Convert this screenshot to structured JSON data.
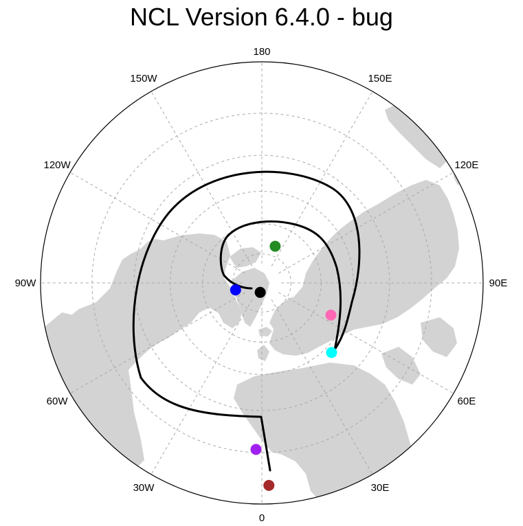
{
  "title": "NCL Version 6.4.0 - bug",
  "colors": {
    "land": "#d3d3d3",
    "ocean": "#ffffff",
    "grid": "#a9a9a9",
    "track": "#000000",
    "border": "#000000"
  },
  "longitude_labels": [
    {
      "id": "lon-0",
      "text": "0",
      "lon": 0
    },
    {
      "id": "lon-30e",
      "text": "30E",
      "lon": 30
    },
    {
      "id": "lon-60e",
      "text": "60E",
      "lon": 60
    },
    {
      "id": "lon-90e",
      "text": "90E",
      "lon": 90
    },
    {
      "id": "lon-120e",
      "text": "120E",
      "lon": 120
    },
    {
      "id": "lon-150e",
      "text": "150E",
      "lon": 150
    },
    {
      "id": "lon-180",
      "text": "180",
      "lon": 180
    },
    {
      "id": "lon-150w",
      "text": "150W",
      "lon": -150
    },
    {
      "id": "lon-120w",
      "text": "120W",
      "lon": -120
    },
    {
      "id": "lon-90w",
      "text": "90W",
      "lon": -90
    },
    {
      "id": "lon-60w",
      "text": "60W",
      "lon": -60
    },
    {
      "id": "lon-30w",
      "text": "30W",
      "lon": -30
    }
  ],
  "latitude_circles": [
    75,
    60,
    45,
    30,
    15
  ],
  "projection": {
    "type": "north-polar-stereographic",
    "min_lat": 0,
    "center_lon": 0
  },
  "markers": [
    {
      "name": "black",
      "color": "#000000",
      "lat": 85,
      "lon": -10
    },
    {
      "name": "blue",
      "color": "#0000ff",
      "lat": 76,
      "lon": -75
    },
    {
      "name": "green",
      "color": "#228b22",
      "lat": 70,
      "lon": 160
    },
    {
      "name": "pink",
      "color": "#ff69b4",
      "lat": 52,
      "lon": 65
    },
    {
      "name": "cyan",
      "color": "#00ffff",
      "lat": 42,
      "lon": 45
    },
    {
      "name": "purple",
      "color": "#a020f0",
      "lat": 16,
      "lon": -2
    },
    {
      "name": "brown",
      "color": "#a52a2a",
      "lat": 5,
      "lon": 2
    }
  ]
}
